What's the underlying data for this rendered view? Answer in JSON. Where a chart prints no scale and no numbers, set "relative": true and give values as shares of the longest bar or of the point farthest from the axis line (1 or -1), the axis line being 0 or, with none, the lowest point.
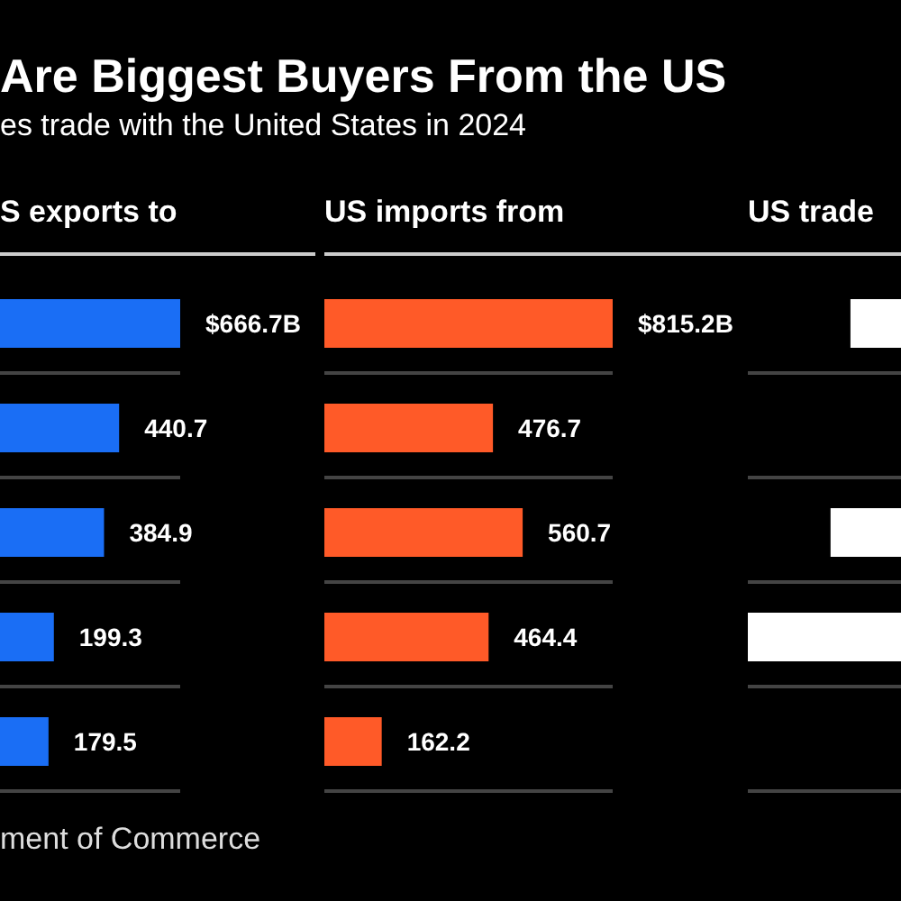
{
  "chart_data": [
    {
      "type": "bar",
      "orientation": "horizontal",
      "title": "Are Biggest Buyers From the US",
      "subtitle": "es trade with the United States in 2024",
      "xlabel": "S exports to",
      "categories": [
        null,
        null,
        null,
        null,
        null
      ],
      "color": "#1a6ef5",
      "values": [
        666.7,
        440.7,
        384.9,
        199.3,
        179.5
      ],
      "value_labels": [
        "$666.7B",
        "440.7",
        "384.9",
        "199.3",
        "179.5"
      ],
      "grid": "y",
      "annotations": [
        "ment of Commerce"
      ]
    },
    {
      "type": "bar",
      "orientation": "horizontal",
      "xlabel": "US imports from",
      "categories": [
        null,
        null,
        null,
        null,
        null
      ],
      "color": "#ff5a28",
      "values": [
        815.2,
        476.7,
        560.7,
        464.4,
        162.2
      ],
      "value_labels": [
        "$815.2B",
        "476.7",
        "560.7",
        "464.4",
        "162.2"
      ],
      "grid": "y"
    },
    {
      "type": "bar",
      "orientation": "horizontal",
      "relative": true,
      "xlabel": "US trade",
      "categories": [
        null,
        null,
        null,
        null,
        null
      ],
      "color": "#ffffff",
      "values": [
        -0.33,
        null,
        -0.46,
        -1,
        null
      ],
      "grid": "y"
    }
  ]
}
